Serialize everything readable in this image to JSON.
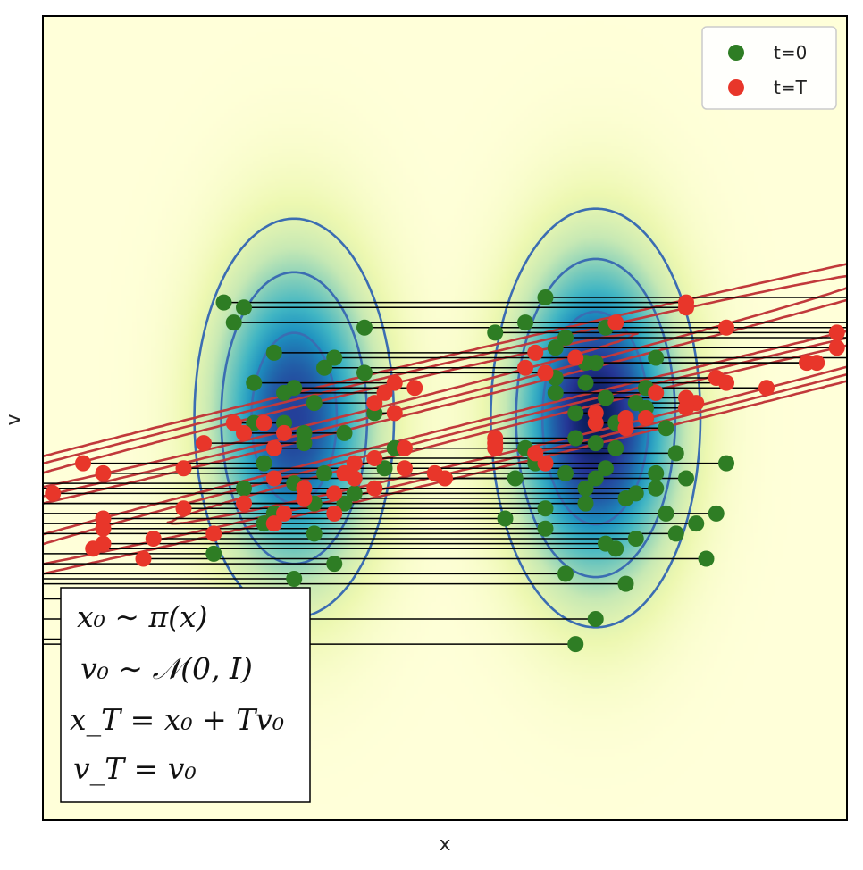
{
  "chart_data": {
    "type": "scatter",
    "title": "",
    "xlabel": "x",
    "ylabel": "v",
    "xlim": [
      -4,
      4
    ],
    "ylim": [
      -4,
      4
    ],
    "grid": false,
    "legend_position": "top-right",
    "background_density": "two-gaussian mixture in x times standard normal in v (yellow-green-blue heatmap)",
    "mixture": {
      "components": [
        {
          "mu": -1.5,
          "sigma": 0.5,
          "weight": 0.45
        },
        {
          "mu": 1.5,
          "sigma": 0.5,
          "weight": 0.55
        }
      ],
      "v_sigma": 1.0
    },
    "contours": {
      "t0": {
        "color": "#3b6db2",
        "levels": [
          0.02,
          0.05,
          0.1,
          0.2,
          0.3
        ]
      },
      "tT": {
        "color": "#c1393b",
        "T": 4,
        "levels": [
          0.02,
          0.05,
          0.1,
          0.2
        ]
      }
    },
    "T": 4,
    "series": [
      {
        "name": "t=0",
        "color": "#2e7d24"
      },
      {
        "name": "t=T",
        "color": "#e8362a"
      }
    ],
    "x0": [
      -2.2,
      -2.0,
      -1.7,
      -1.5,
      -1.3,
      -1.1,
      -0.8,
      -1.9,
      -2.1,
      -1.6,
      -1.4,
      -1.2,
      -1.8,
      -0.9,
      -1.0,
      -1.5,
      -1.7,
      -2.3,
      -1.3,
      -1.1,
      -0.6,
      -1.9,
      -1.6,
      -1.4,
      -0.7,
      -1.2,
      -2.0,
      -1.8,
      -0.5,
      -1.0,
      -1.5,
      -2.4,
      -1.6,
      -1.3,
      -0.8,
      1.0,
      1.2,
      1.4,
      1.6,
      1.8,
      2.0,
      2.2,
      0.8,
      1.1,
      1.3,
      1.5,
      1.7,
      1.9,
      2.1,
      0.9,
      1.2,
      1.6,
      1.4,
      2.3,
      0.7,
      1.0,
      1.8,
      1.5,
      2.0,
      1.3,
      1.1,
      1.7,
      2.5,
      1.4,
      0.6,
      1.9,
      2.2,
      1.6,
      2.6,
      1.2,
      0.5,
      1.8,
      2.1,
      1.3,
      2.4,
      1.7,
      0.9,
      2.0,
      1.5,
      1.0,
      2.7,
      1.1,
      1.6,
      2.8,
      1.4,
      0.8,
      2.3,
      1.9,
      2.1,
      1.5
    ],
    "v0": [
      1.15,
      1.1,
      0.65,
      0.3,
      0.15,
      0.6,
      0.9,
      -0.05,
      0.95,
      0.25,
      -0.25,
      -0.55,
      -0.45,
      -0.75,
      -0.85,
      -0.65,
      -0.95,
      -1.35,
      -1.15,
      -1.45,
      -0.5,
      0.35,
      -0.05,
      -0.15,
      0.05,
      0.5,
      -0.7,
      -1.05,
      -0.3,
      -0.15,
      -1.6,
      -1.8,
      -2.2,
      -0.85,
      0.45,
      1.2,
      0.8,
      0.55,
      0.2,
      0.0,
      0.3,
      -0.1,
      0.95,
      0.4,
      0.05,
      -0.25,
      -0.05,
      0.15,
      0.6,
      -0.4,
      -0.55,
      -0.5,
      -0.7,
      -0.35,
      -0.6,
      -0.9,
      -0.8,
      0.55,
      0.1,
      -0.2,
      0.25,
      -0.3,
      -1.05,
      -0.85,
      -1.0,
      -1.2,
      -0.95,
      -1.25,
      -1.4,
      -1.55,
      0.85,
      -1.65,
      -0.7,
      -2.25,
      -0.6,
      -1.3,
      -0.45,
      0.0,
      -2.0,
      -1.1,
      -0.95,
      0.7,
      0.9,
      -0.45,
      0.35,
      -0.3,
      -1.15,
      -0.75,
      -0.55,
      -0.6
    ],
    "equations": [
      {
        "lhs": "x₀",
        "rhs": "∼ π(x)"
      },
      {
        "lhs": "v₀",
        "rhs": "∼ 𝒩(0, I)"
      },
      {
        "lhs": "x_T",
        "rhs": "= x₀ + Tv₀"
      },
      {
        "lhs": "v_T",
        "rhs": "= v₀"
      }
    ]
  }
}
